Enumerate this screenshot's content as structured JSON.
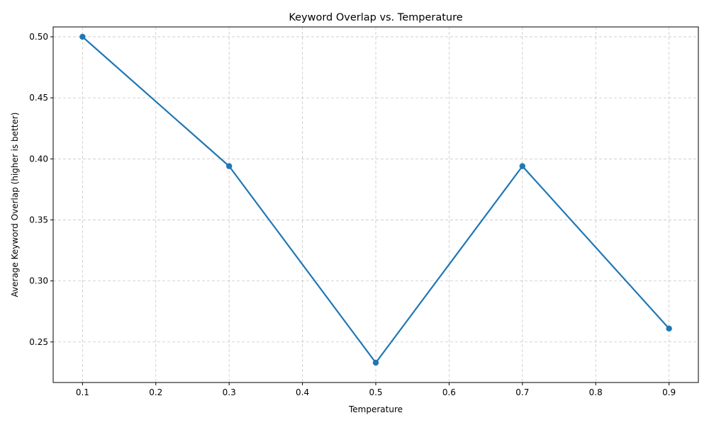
{
  "chart_data": {
    "type": "line",
    "title": "Keyword Overlap vs. Temperature",
    "xlabel": "Temperature",
    "ylabel": "Average Keyword Overlap (higher is better)",
    "x": [
      0.1,
      0.3,
      0.5,
      0.7,
      0.9
    ],
    "series": [
      {
        "values": [
          0.5,
          0.394,
          0.233,
          0.394,
          0.261
        ],
        "color": "#1f77b4",
        "marker": "circle"
      }
    ],
    "xlim": [
      0.06,
      0.94
    ],
    "ylim": [
      0.2168,
      0.5081
    ],
    "xticks": [
      0.1,
      0.2,
      0.3,
      0.4,
      0.5,
      0.6,
      0.7,
      0.8,
      0.9
    ],
    "xtick_labels": [
      "0.1",
      "0.2",
      "0.3",
      "0.4",
      "0.5",
      "0.6",
      "0.7",
      "0.8",
      "0.9"
    ],
    "yticks": [
      0.25,
      0.3,
      0.35,
      0.4,
      0.45,
      0.5
    ],
    "ytick_labels": [
      "0.25",
      "0.30",
      "0.35",
      "0.40",
      "0.45",
      "0.50"
    ],
    "grid": true,
    "grid_style": "dashed"
  }
}
